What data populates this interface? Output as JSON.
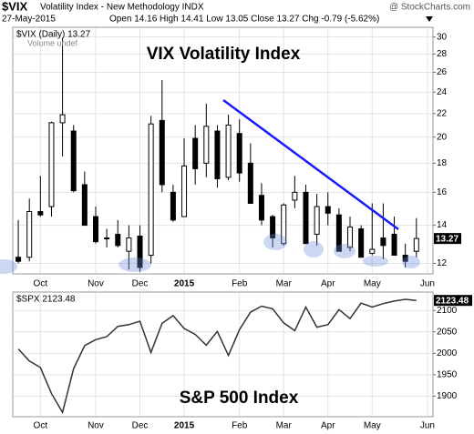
{
  "header": {
    "symbol": "$VIX",
    "name": "Volatility Index - New Methodology INDX",
    "date": "27-May-2015",
    "quote": "Open 14.16  High 14.41  Low 13.05  Close 13.27  Chg -0.79 (-5.62%)",
    "source": "@ StockCharts.com"
  },
  "chart_data": [
    {
      "type": "candlestick",
      "title": "VIX Volatility Index",
      "legend": "$VIX (Daily) 13.27",
      "volume_note": "Volume undef",
      "last_label": "13.27",
      "last_value": 13.27,
      "categories": [
        null,
        null,
        "Oct",
        null,
        null,
        null,
        null,
        "Nov",
        null,
        null,
        null,
        "Dec",
        null,
        null,
        null,
        "2015",
        null,
        null,
        null,
        null,
        "Feb",
        null,
        null,
        null,
        "Mar",
        null,
        null,
        null,
        "Apr",
        null,
        null,
        null,
        "May",
        null,
        null,
        null,
        null,
        "Jun"
      ],
      "series": {
        "color": "#000000",
        "open": [
          12.3,
          12.3,
          14.8,
          15.1,
          21.2,
          20.5,
          16.5,
          14.5,
          13.3,
          13.5,
          12.6,
          13.4,
          12.4,
          21.4,
          16.0,
          14.5,
          19.9,
          18.0,
          20.5,
          17.0,
          20.3,
          18.0,
          15.8,
          14.5,
          13.0,
          15.5,
          16.0,
          13.5,
          15.1,
          14.6,
          12.8,
          13.8,
          12.5,
          13.3,
          13.5,
          12.4,
          12.6,
          null
        ],
        "high": [
          14.3,
          15.6,
          17.1,
          21.3,
          29.9,
          21.0,
          17.4,
          15.1,
          13.8,
          14.3,
          14.0,
          14.0,
          21.8,
          25.2,
          16.5,
          19.9,
          21.0,
          22.9,
          21.0,
          21.9,
          21.5,
          19.5,
          16.6,
          14.6,
          15.3,
          17.1,
          16.5,
          15.9,
          16.0,
          15.0,
          14.5,
          14.0,
          15.3,
          15.3,
          14.5,
          13.0,
          14.41,
          null
        ],
        "low": [
          12.0,
          12.1,
          14.5,
          14.5,
          18.5,
          16.0,
          14.0,
          13.0,
          12.8,
          12.8,
          11.7,
          11.6,
          12.0,
          16.0,
          14.2,
          14.5,
          16.5,
          17.0,
          16.3,
          16.8,
          16.7,
          15.3,
          14.0,
          12.8,
          12.9,
          15.0,
          13.0,
          12.9,
          14.0,
          12.6,
          12.6,
          12.3,
          12.4,
          12.2,
          12.4,
          11.8,
          12.3,
          null
        ],
        "close": [
          12.1,
          14.8,
          14.6,
          21.2,
          21.9,
          16.1,
          14.0,
          13.1,
          13.3,
          12.9,
          13.3,
          11.8,
          21.1,
          16.5,
          14.3,
          17.8,
          17.6,
          20.9,
          16.9,
          21.0,
          17.3,
          15.3,
          14.3,
          13.3,
          15.2,
          16.0,
          13.0,
          15.1,
          14.7,
          12.6,
          13.9,
          12.3,
          12.7,
          12.9,
          12.4,
          12.1,
          13.27,
          null
        ]
      },
      "log_scale": true,
      "ylim": [
        11.5,
        31.2
      ],
      "yticks": [
        12,
        14,
        16,
        18,
        20,
        22,
        24,
        26,
        28,
        30
      ],
      "grid": true
    },
    {
      "type": "line",
      "title": "S&P 500 Index",
      "legend": "$SPX 2123.48",
      "last_label": "2123.48",
      "last_value": 2123.48,
      "categories": [
        null,
        null,
        "Oct",
        null,
        null,
        null,
        null,
        "Nov",
        null,
        null,
        null,
        "Dec",
        null,
        null,
        null,
        "2015",
        null,
        null,
        null,
        null,
        "Feb",
        null,
        null,
        null,
        "Mar",
        null,
        null,
        null,
        "Apr",
        null,
        null,
        null,
        "May",
        null,
        null,
        null,
        null,
        "Jun"
      ],
      "series": [
        {
          "name": "$SPX",
          "color": "#333333",
          "values": [
            2010,
            1982,
            1967,
            1906,
            1862,
            1964,
            2018,
            2032,
            2039,
            2063,
            2067,
            2075,
            2002,
            2070,
            2088,
            2058,
            2044,
            2019,
            2051,
            1995,
            2055,
            2096,
            2110,
            2104,
            2071,
            2053,
            2108,
            2061,
            2067,
            2102,
            2081,
            2117,
            2108,
            2116,
            2122,
            2126,
            2123.48,
            null
          ]
        }
      ],
      "ylim": [
        1852,
        2143
      ],
      "yticks": [
        1900,
        1950,
        2000,
        2050,
        2100
      ],
      "grid": true
    }
  ]
}
